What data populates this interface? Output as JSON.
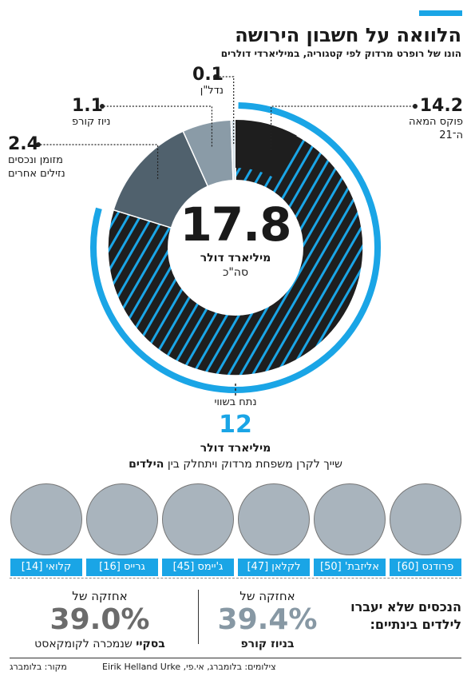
{
  "header": {
    "title": "הלוואה על חשבון הירושה",
    "subtitle": "הונו של רופרט מרדוק לפי קטגוריה, במיליארדי דולרים"
  },
  "chart_data": {
    "type": "pie",
    "title": "הלוואה על חשבון הירושה",
    "subtitle": "הונו של רופרט מרדוק לפי קטגוריה, במיליארדי דולרים",
    "slices": [
      {
        "label": "פוקס המאה ה־21",
        "value": 14.2,
        "value_label": "14.2",
        "label_lines": [
          "פוקס המאה",
          "ה־21"
        ]
      },
      {
        "label": "מזומן ונכסים נזילים אחרים",
        "value": 2.4,
        "value_label": "2.4",
        "label_lines": [
          "מזומן ונכסים",
          "נזילים אחרים"
        ]
      },
      {
        "label": "ניוז קורפ",
        "value": 1.1,
        "value_label": "1.1",
        "label_lines": [
          "ניוז קורפ"
        ]
      },
      {
        "label": "נדל\"ן",
        "value": 0.1,
        "value_label": "0.1",
        "label_lines": [
          "נדל\"ן"
        ]
      }
    ],
    "total": {
      "value": "17.8",
      "unit": "מיליארד דולר",
      "sub": "סה\"כ"
    },
    "colors": {
      "fox": "#1e1e1e",
      "stripe": "#1aa5e6",
      "cash": "#50616d",
      "news": "#8a9ba7",
      "realestate": "#d6e1e8",
      "accent": "#1aa5e6"
    }
  },
  "equal_split": {
    "label": "נתח בשווי",
    "value": "12",
    "unit": "מיליארד דולר",
    "description": "שייך לקרן משפחת מרדוק ויתחלק בין",
    "description_bold": "הילדים"
  },
  "children": [
    {
      "name": "פרודנס [60]"
    },
    {
      "name": "אליזבת' [50]"
    },
    {
      "name": "לקלאן [47]"
    },
    {
      "name": "ג'יימס [45]"
    },
    {
      "name": "גרייס [16]"
    },
    {
      "name": "קלואי [14]"
    }
  ],
  "holdings": {
    "question": [
      "הנכסים שלא יעברו",
      "לילדים בינתיים:"
    ],
    "items": [
      {
        "title": "אחזקה של",
        "value": "39.4%",
        "desc_bold": "בניוז קורפ",
        "desc": ""
      },
      {
        "title": "אחזקה של",
        "value": "39.0%",
        "desc_bold": "בסקיי",
        "desc": "שנמכרה לקומקאסט"
      }
    ]
  },
  "footer": {
    "credits": "צילומים: בלומברג, אי.פי, Eirik Helland Urke",
    "source": "מקור: בלומברג"
  }
}
